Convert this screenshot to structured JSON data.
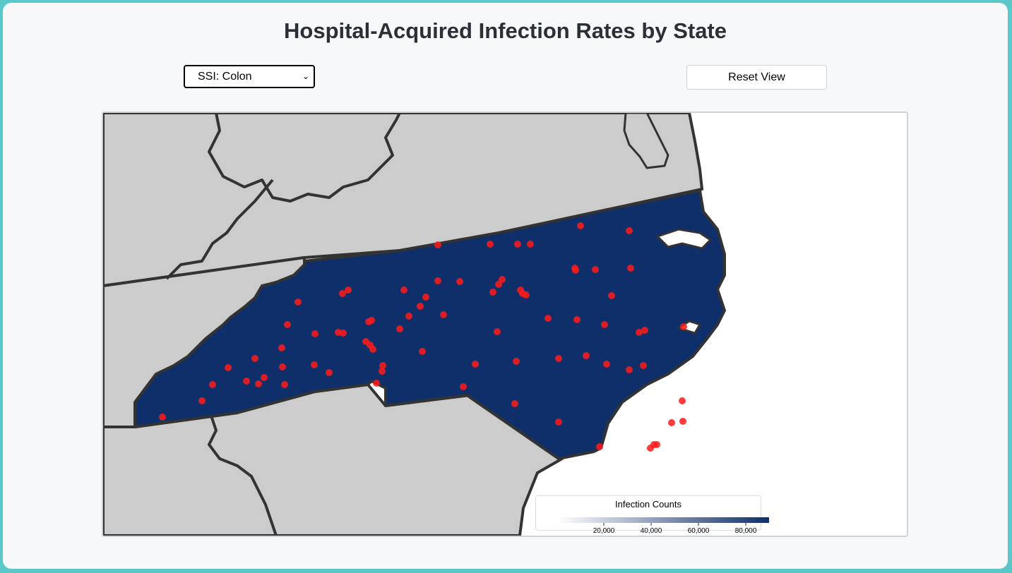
{
  "page": {
    "title": "Hospital-Acquired Infection Rates by State"
  },
  "controls": {
    "measure_select": {
      "selected": "SSI: Colon",
      "icon": "chevron-down-icon"
    },
    "reset_label": "Reset View"
  },
  "map": {
    "region": "North Carolina",
    "state_fill": "#0f2f6a",
    "neighbor_fill": "#cccccc",
    "border_color": "#333333",
    "marker_color": "#ff1a1a",
    "marker_count": 96,
    "legend": {
      "title": "Infection Counts",
      "ticks": [
        "20,000",
        "40,000",
        "60,000",
        "80,000"
      ],
      "color_low": "#ffffff",
      "color_high": "#0f2f6a"
    }
  }
}
